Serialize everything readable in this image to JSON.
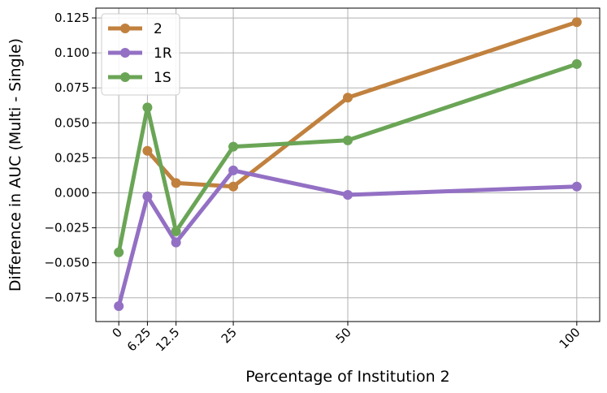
{
  "chart_data": {
    "type": "line",
    "x": [
      0,
      6.25,
      12.5,
      25,
      50,
      100
    ],
    "xtick_labels": [
      "0",
      "6.25",
      "12.5",
      "25",
      "50",
      "100"
    ],
    "xlabel": "Percentage of Institution 2",
    "ylabel": "Difference in AUC (Multi - Single)",
    "ylim": [
      -0.092,
      0.132
    ],
    "yticks": [
      -0.075,
      -0.05,
      -0.025,
      0.0,
      0.025,
      0.05,
      0.075,
      0.1,
      0.125
    ],
    "ytick_labels": [
      "−0.075",
      "−0.050",
      "−0.025",
      "0.000",
      "0.025",
      "0.050",
      "0.075",
      "0.100",
      "0.125"
    ],
    "grid": true,
    "legend_position": "top-left",
    "series": [
      {
        "name": "2",
        "color": "#c1813e",
        "x": [
          6.25,
          12.5,
          25,
          50,
          100
        ],
        "values": [
          0.03,
          0.007,
          0.0045,
          0.068,
          0.122
        ]
      },
      {
        "name": "1R",
        "color": "#9370c4",
        "x": [
          0,
          6.25,
          12.5,
          25,
          50,
          100
        ],
        "values": [
          -0.081,
          -0.0025,
          -0.0355,
          0.016,
          -0.0015,
          0.0045
        ]
      },
      {
        "name": "1S",
        "color": "#6aa556",
        "x": [
          0,
          6.25,
          12.5,
          25,
          50,
          100
        ],
        "values": [
          -0.0425,
          0.061,
          -0.0275,
          0.033,
          0.0375,
          0.092
        ]
      }
    ]
  }
}
